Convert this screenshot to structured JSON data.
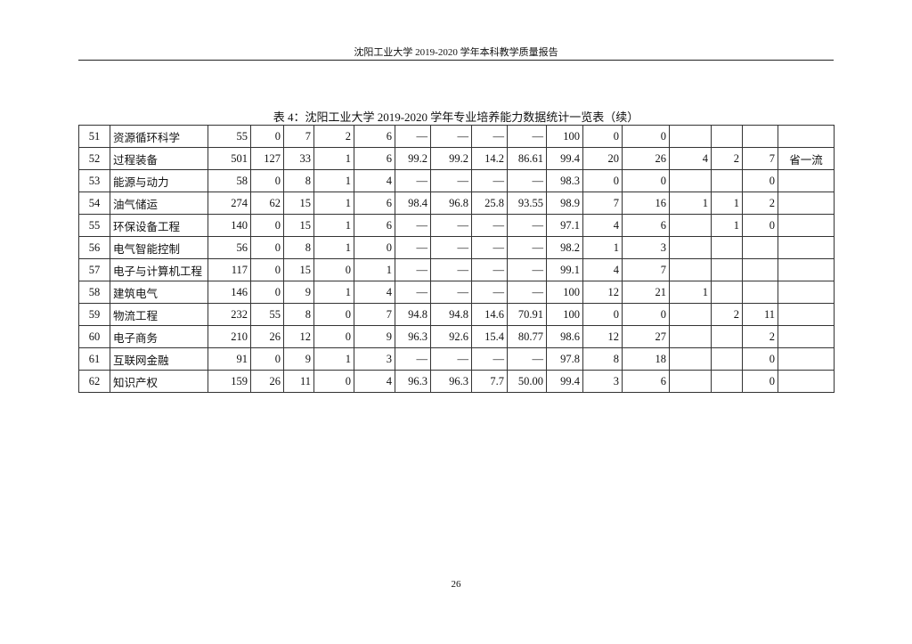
{
  "header": {
    "title": "沈阳工业大学 2019-2020 学年本科教学质量报告"
  },
  "table_title": "表 4：沈阳工业大学 2019-2020 学年专业培养能力数据统计一览表（续）",
  "rows": [
    [
      "51",
      "资源循环科学",
      "55",
      "0",
      "7",
      "2",
      "6",
      "—",
      "—",
      "—",
      "—",
      "100",
      "0",
      "0",
      "",
      "",
      "",
      ""
    ],
    [
      "52",
      "过程装备",
      "501",
      "127",
      "33",
      "1",
      "6",
      "99.2",
      "99.2",
      "14.2",
      "86.61",
      "99.4",
      "20",
      "26",
      "4",
      "2",
      "7",
      "省一流"
    ],
    [
      "53",
      "能源与动力",
      "58",
      "0",
      "8",
      "1",
      "4",
      "—",
      "—",
      "—",
      "—",
      "98.3",
      "0",
      "0",
      "",
      "",
      "0",
      ""
    ],
    [
      "54",
      "油气储运",
      "274",
      "62",
      "15",
      "1",
      "6",
      "98.4",
      "96.8",
      "25.8",
      "93.55",
      "98.9",
      "7",
      "16",
      "1",
      "1",
      "2",
      ""
    ],
    [
      "55",
      "环保设备工程",
      "140",
      "0",
      "15",
      "1",
      "6",
      "—",
      "—",
      "—",
      "—",
      "97.1",
      "4",
      "6",
      "",
      "1",
      "0",
      ""
    ],
    [
      "56",
      "电气智能控制",
      "56",
      "0",
      "8",
      "1",
      "0",
      "—",
      "—",
      "—",
      "—",
      "98.2",
      "1",
      "3",
      "",
      "",
      "",
      ""
    ],
    [
      "57",
      "电子与计算机工程",
      "117",
      "0",
      "15",
      "0",
      "1",
      "—",
      "—",
      "—",
      "—",
      "99.1",
      "4",
      "7",
      "",
      "",
      "",
      ""
    ],
    [
      "58",
      "建筑电气",
      "146",
      "0",
      "9",
      "1",
      "4",
      "—",
      "—",
      "—",
      "—",
      "100",
      "12",
      "21",
      "1",
      "",
      "",
      ""
    ],
    [
      "59",
      "物流工程",
      "232",
      "55",
      "8",
      "0",
      "7",
      "94.8",
      "94.8",
      "14.6",
      "70.91",
      "100",
      "0",
      "0",
      "",
      "2",
      "11",
      ""
    ],
    [
      "60",
      "电子商务",
      "210",
      "26",
      "12",
      "0",
      "9",
      "96.3",
      "92.6",
      "15.4",
      "80.77",
      "98.6",
      "12",
      "27",
      "",
      "",
      "2",
      ""
    ],
    [
      "61",
      "互联网金融",
      "91",
      "0",
      "9",
      "1",
      "3",
      "—",
      "—",
      "—",
      "—",
      "97.8",
      "8",
      "18",
      "",
      "",
      "0",
      ""
    ],
    [
      "62",
      "知识产权",
      "159",
      "26",
      "11",
      "0",
      "4",
      "96.3",
      "96.3",
      "7.7",
      "50.00",
      "99.4",
      "3",
      "6",
      "",
      "",
      "0",
      ""
    ]
  ],
  "page_number": "26"
}
